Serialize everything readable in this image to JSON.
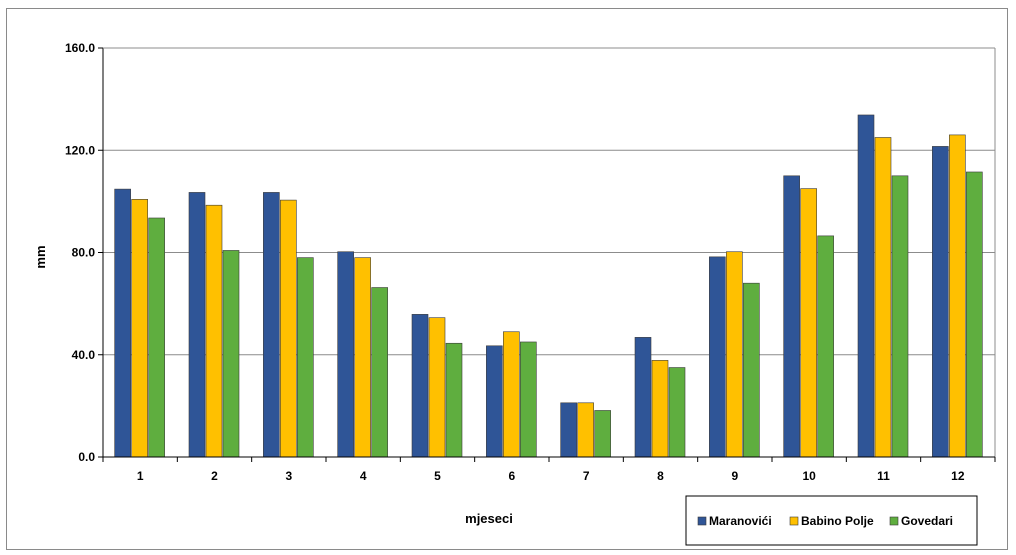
{
  "chart_data": {
    "type": "bar",
    "categories": [
      "1",
      "2",
      "3",
      "4",
      "5",
      "6",
      "7",
      "8",
      "9",
      "10",
      "11",
      "12"
    ],
    "series": [
      {
        "name": "Maranovići",
        "color": "#2f5597",
        "values": [
          104.8,
          103.5,
          103.5,
          80.3,
          55.8,
          43.5,
          21.2,
          46.8,
          78.3,
          110.0,
          133.8,
          121.5
        ]
      },
      {
        "name": "Babino Polje",
        "color": "#ffc000",
        "values": [
          100.8,
          98.5,
          100.5,
          78.0,
          54.5,
          49.0,
          21.2,
          37.8,
          80.3,
          105.0,
          125.0,
          126.0
        ]
      },
      {
        "name": "Govedari",
        "color": "#5fae3f",
        "values": [
          93.5,
          80.8,
          78.0,
          66.3,
          44.5,
          45.0,
          18.2,
          35.0,
          68.0,
          86.5,
          110.0,
          111.5
        ]
      }
    ],
    "y_ticks": [
      "0.0",
      "40.0",
      "80.0",
      "120.0",
      "160.0"
    ],
    "ylim": [
      0,
      160
    ],
    "xlabel": "mjeseci",
    "ylabel": "mm",
    "grid": true,
    "legend_position": "bottom-right"
  }
}
